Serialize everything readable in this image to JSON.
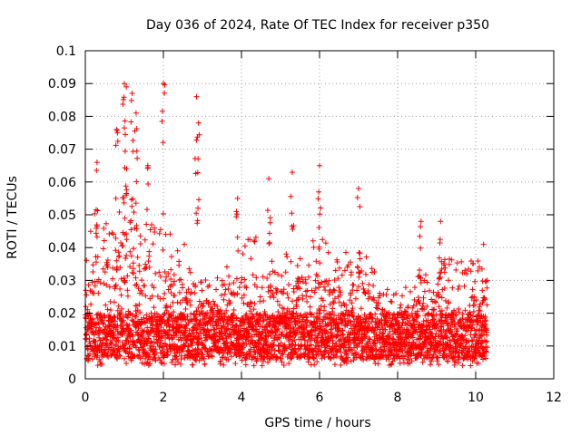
{
  "chart_data": {
    "type": "scatter",
    "title": "Day 036 of 2024, Rate Of TEC Index for receiver p350",
    "xlabel": "GPS time / hours",
    "ylabel": "ROTI / TECUs",
    "xlim": [
      0,
      12
    ],
    "ylim": [
      0,
      0.1
    ],
    "xticks": [
      0,
      2,
      4,
      6,
      8,
      10,
      12
    ],
    "yticks": [
      0,
      0.01,
      0.02,
      0.03,
      0.04,
      0.05,
      0.06,
      0.07,
      0.08,
      0.09,
      0.1
    ],
    "grid": true,
    "marker": "+",
    "series": [
      {
        "name": "ROTI p350",
        "color": "#ff0000",
        "data_range_hours": [
          0,
          10.3
        ],
        "notable_points": [
          {
            "x": 1.0,
            "y": 0.09
          },
          {
            "x": 1.05,
            "y": 0.089
          },
          {
            "x": 1.2,
            "y": 0.087
          },
          {
            "x": 2.0,
            "y": 0.09
          },
          {
            "x": 2.85,
            "y": 0.086
          },
          {
            "x": 0.8,
            "y": 0.076
          },
          {
            "x": 1.3,
            "y": 0.081
          },
          {
            "x": 2.9,
            "y": 0.078
          },
          {
            "x": 0.3,
            "y": 0.066
          },
          {
            "x": 1.6,
            "y": 0.065
          },
          {
            "x": 5.3,
            "y": 0.063
          },
          {
            "x": 6.0,
            "y": 0.065
          },
          {
            "x": 4.7,
            "y": 0.061
          },
          {
            "x": 7.0,
            "y": 0.058
          },
          {
            "x": 3.9,
            "y": 0.055
          },
          {
            "x": 8.6,
            "y": 0.048
          },
          {
            "x": 9.1,
            "y": 0.048
          },
          {
            "x": 10.2,
            "y": 0.041
          }
        ]
      }
    ]
  }
}
